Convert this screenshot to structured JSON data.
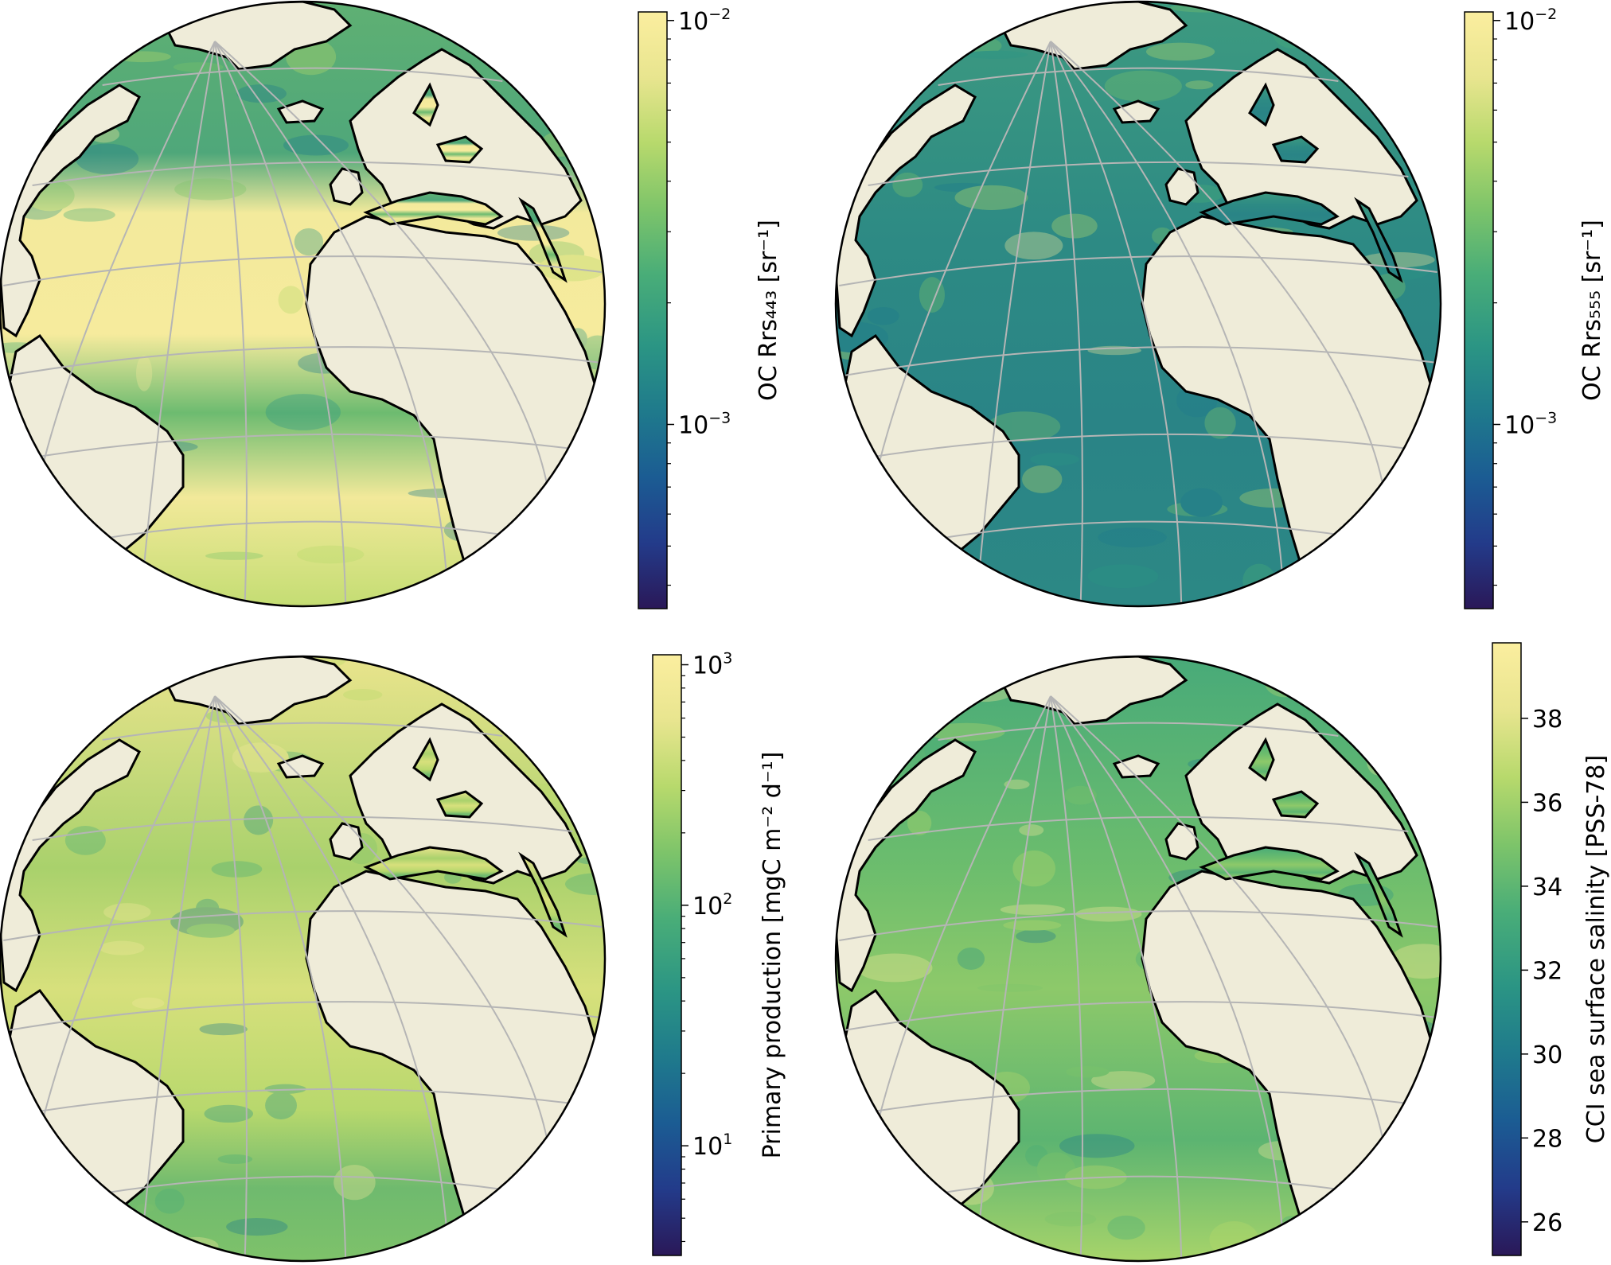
{
  "panels": [
    {
      "id": "rrs443",
      "colorbar": {
        "label": "OC Rrs₄₄₃ [sr⁻¹]",
        "scale": "log",
        "range": [
          0.00035,
          0.0105
        ],
        "ticks": [
          {
            "value": 0.01,
            "base": "10",
            "exp": "−2"
          },
          {
            "value": 0.001,
            "base": "10",
            "exp": "−3"
          }
        ]
      }
    },
    {
      "id": "rrs555",
      "colorbar": {
        "label": "OC Rrs₅₅₅ [sr⁻¹]",
        "scale": "log",
        "range": [
          0.00035,
          0.0105
        ],
        "ticks": [
          {
            "value": 0.01,
            "base": "10",
            "exp": "−2"
          },
          {
            "value": 0.001,
            "base": "10",
            "exp": "−3"
          }
        ]
      }
    },
    {
      "id": "pp",
      "colorbar": {
        "label": "Primary production [mgC m⁻² d⁻¹]",
        "scale": "log",
        "range": [
          3.5,
          1100
        ],
        "ticks": [
          {
            "value": 1000,
            "base": "10",
            "exp": "3"
          },
          {
            "value": 100,
            "base": "10",
            "exp": "2"
          },
          {
            "value": 10,
            "base": "10",
            "exp": "1"
          }
        ]
      }
    },
    {
      "id": "sss",
      "colorbar": {
        "label": "CCI sea surface salinity [PSS-78]",
        "scale": "linear",
        "range": [
          25.2,
          39.8
        ],
        "ticks": [
          {
            "value": 38,
            "label": "38"
          },
          {
            "value": 36,
            "label": "36"
          },
          {
            "value": 34,
            "label": "34"
          },
          {
            "value": 32,
            "label": "32"
          },
          {
            "value": 30,
            "label": "30"
          },
          {
            "value": 28,
            "label": "28"
          },
          {
            "value": 26,
            "label": "26"
          }
        ]
      }
    }
  ],
  "colors": {
    "land": "#efecd9",
    "coast": "#000000",
    "grid": "#b5b5b5",
    "cmap": [
      "#2a1858",
      "#233b8a",
      "#1b5c93",
      "#1f7a8c",
      "#2b9584",
      "#49ad78",
      "#7dc46a",
      "#b7d96c",
      "#f2e99a",
      "#fbee9f"
    ]
  }
}
